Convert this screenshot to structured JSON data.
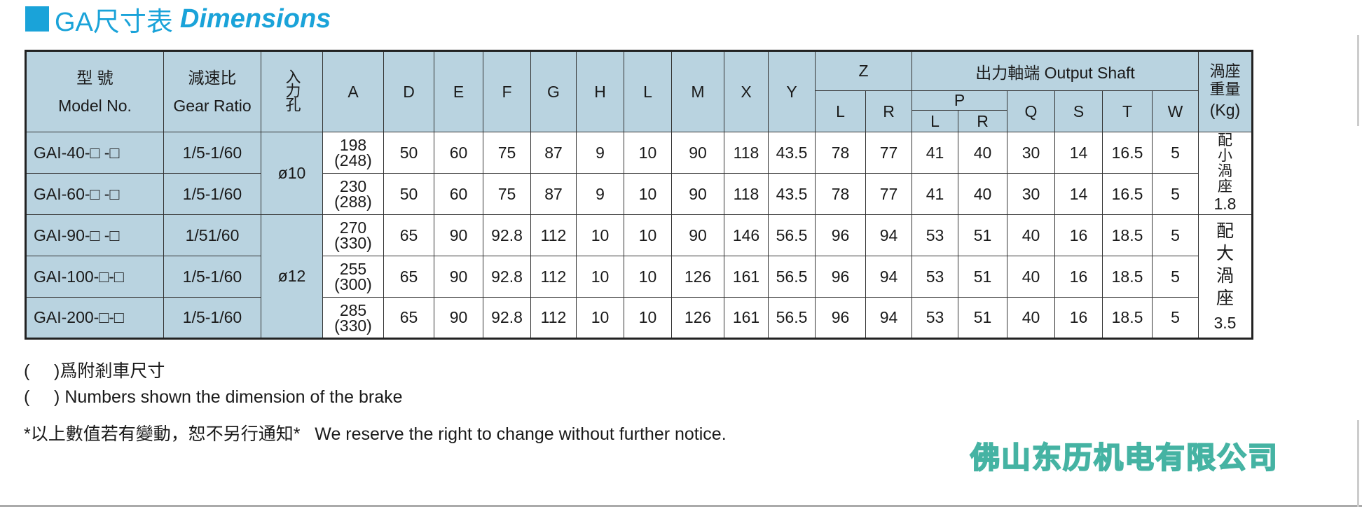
{
  "title": {
    "cn": "GA尺寸表",
    "en": "Dimensions",
    "accent_color": "#1aa3d9"
  },
  "header": {
    "model_cn": "型 號",
    "model_en": "Model No.",
    "ratio_cn": "減速比",
    "ratio_en": "Gear Ratio",
    "input_hole": "入力孔",
    "cols": [
      "A",
      "D",
      "E",
      "F",
      "G",
      "H",
      "L",
      "M",
      "X",
      "Y"
    ],
    "z": "Z",
    "z_l": "L",
    "z_r": "R",
    "output_shaft": "出力軸端 Output Shaft",
    "p": "P",
    "p_l": "L",
    "p_r": "R",
    "q": "Q",
    "s": "S",
    "t": "T",
    "w": "W",
    "weight_cn": "渦座重量",
    "weight_unit": "(Kg)",
    "header_color": "#b9d3e0"
  },
  "rows": [
    {
      "model": "GAI-40-□ -□",
      "ratio": "1/5-1/60",
      "a": "198",
      "a_brake": "(248)",
      "d": "50",
      "e": "60",
      "f": "75",
      "g": "87",
      "h": "9",
      "l": "10",
      "m": "90",
      "x": "118",
      "y": "43.5",
      "zl": "78",
      "zr": "77",
      "pl": "41",
      "pr": "40",
      "q": "30",
      "s": "14",
      "t": "16.5",
      "w": "5"
    },
    {
      "model": "GAI-60-□ -□",
      "ratio": "1/5-1/60",
      "a": "230",
      "a_brake": "(288)",
      "d": "50",
      "e": "60",
      "f": "75",
      "g": "87",
      "h": "9",
      "l": "10",
      "m": "90",
      "x": "118",
      "y": "43.5",
      "zl": "78",
      "zr": "77",
      "pl": "41",
      "pr": "40",
      "q": "30",
      "s": "14",
      "t": "16.5",
      "w": "5"
    },
    {
      "model": "GAI-90-□ -□",
      "ratio": "1/51/60",
      "a": "270",
      "a_brake": "(330)",
      "d": "65",
      "e": "90",
      "f": "92.8",
      "g": "112",
      "h": "10",
      "l": "10",
      "m": "90",
      "x": "146",
      "y": "56.5",
      "zl": "96",
      "zr": "94",
      "pl": "53",
      "pr": "51",
      "q": "40",
      "s": "16",
      "t": "18.5",
      "w": "5"
    },
    {
      "model": "GAI-100-□-□",
      "ratio": "1/5-1/60",
      "a": "255",
      "a_brake": "(300)",
      "d": "65",
      "e": "90",
      "f": "92.8",
      "g": "112",
      "h": "10",
      "l": "10",
      "m": "126",
      "x": "161",
      "y": "56.5",
      "zl": "96",
      "zr": "94",
      "pl": "53",
      "pr": "51",
      "q": "40",
      "s": "16",
      "t": "18.5",
      "w": "5"
    },
    {
      "model": "GAI-200-□-□",
      "ratio": "1/5-1/60",
      "a": "285",
      "a_brake": "(330)",
      "d": "65",
      "e": "90",
      "f": "92.8",
      "g": "112",
      "h": "10",
      "l": "10",
      "m": "126",
      "x": "161",
      "y": "56.5",
      "zl": "96",
      "zr": "94",
      "pl": "53",
      "pr": "51",
      "q": "40",
      "s": "16",
      "t": "18.5",
      "w": "5"
    }
  ],
  "input_groups": [
    "ø10",
    "ø12"
  ],
  "weight_groups": [
    {
      "label": "配小渦座",
      "value": "1.8"
    },
    {
      "label": "配大渦座",
      "value": "3.5"
    }
  ],
  "notes": [
    "(     )爲附剎車尺寸",
    "(     ) Numbers shown the dimension of the brake",
    "*以上數值若有變動，恕不另行通知*   We reserve the right to change without further notice."
  ],
  "company": "佛山东历机电有限公司"
}
